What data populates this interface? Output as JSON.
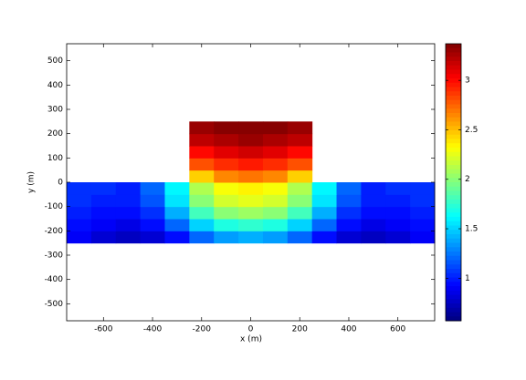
{
  "chart_data": {
    "type": "heatmap",
    "xlabel": "x (m)",
    "ylabel": "y (m)",
    "xlim": [
      -750,
      750
    ],
    "ylim": [
      -570,
      570
    ],
    "xticks": [
      -600,
      -400,
      -200,
      0,
      200,
      400,
      600
    ],
    "yticks": [
      -500,
      -400,
      -300,
      -200,
      -100,
      0,
      100,
      200,
      300,
      400,
      500
    ],
    "colormap": "jet",
    "clim": [
      0.57,
      3.37
    ],
    "cticks": [
      1,
      1.5,
      2,
      2.5,
      3
    ],
    "x_edges": [
      -750,
      -650,
      -550,
      -450,
      -350,
      -250,
      -150,
      -50,
      50,
      150,
      250,
      350,
      450,
      550,
      650,
      750
    ],
    "y_edges": [
      -250,
      -200,
      -150,
      -100,
      -50,
      0,
      50,
      100,
      150,
      200,
      250
    ],
    "values": [
      [
        0.9,
        0.8,
        0.75,
        0.8,
        0.95,
        1.2,
        1.35,
        1.4,
        1.35,
        1.2,
        0.95,
        0.8,
        0.75,
        0.8,
        0.9
      ],
      [
        0.95,
        0.9,
        0.85,
        0.95,
        1.2,
        1.5,
        1.7,
        1.75,
        1.7,
        1.5,
        1.2,
        0.95,
        0.85,
        0.9,
        0.95
      ],
      [
        1.0,
        0.95,
        0.95,
        1.05,
        1.4,
        1.8,
        2.0,
        2.05,
        2.0,
        1.8,
        1.4,
        1.05,
        0.95,
        0.95,
        1.0
      ],
      [
        1.05,
        1.0,
        1.0,
        1.15,
        1.55,
        2.0,
        2.2,
        2.25,
        2.2,
        2.0,
        1.55,
        1.15,
        1.0,
        1.0,
        1.05
      ],
      [
        1.05,
        1.05,
        1.0,
        1.2,
        1.6,
        2.1,
        2.3,
        2.35,
        2.3,
        2.1,
        1.6,
        1.2,
        1.0,
        1.05,
        1.05
      ],
      [
        null,
        null,
        null,
        null,
        null,
        2.45,
        2.65,
        2.7,
        2.65,
        2.45,
        null,
        null,
        null,
        null,
        null
      ],
      [
        null,
        null,
        null,
        null,
        null,
        2.8,
        2.9,
        2.95,
        2.9,
        2.8,
        null,
        null,
        null,
        null,
        null
      ],
      [
        null,
        null,
        null,
        null,
        null,
        3.0,
        3.1,
        3.15,
        3.1,
        3.0,
        null,
        null,
        null,
        null,
        null
      ],
      [
        null,
        null,
        null,
        null,
        null,
        3.2,
        3.25,
        3.3,
        3.25,
        3.2,
        null,
        null,
        null,
        null,
        null
      ],
      [
        null,
        null,
        null,
        null,
        null,
        3.3,
        3.35,
        3.35,
        3.35,
        3.3,
        null,
        null,
        null,
        null,
        null
      ]
    ]
  }
}
